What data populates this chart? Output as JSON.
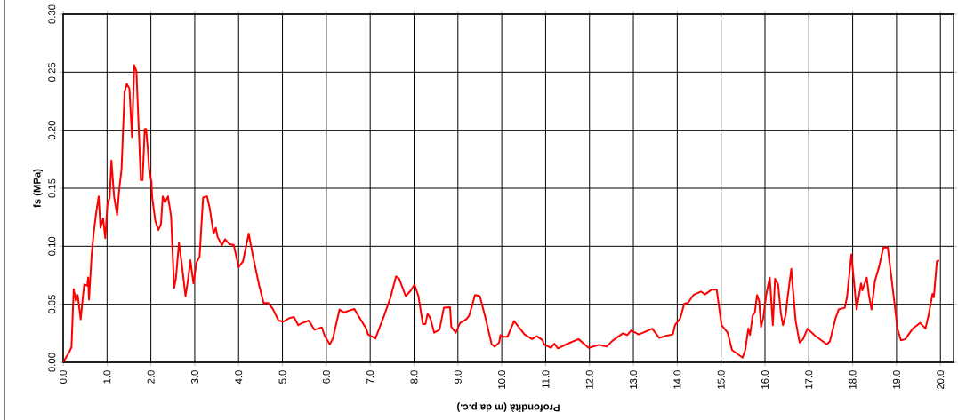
{
  "chart_data": {
    "type": "line",
    "xlabel": "Profondità (m da p.c.)",
    "ylabel": "fs (MPa)",
    "x": [
      0,
      0.14,
      0.19,
      0.24,
      0.29,
      0.33,
      0.4,
      0.44,
      0.48,
      0.55,
      0.57,
      0.59,
      0.65,
      0.7,
      0.76,
      0.81,
      0.85,
      0.91,
      0.96,
      1.01,
      1.06,
      1.1,
      1.16,
      1.23,
      1.28,
      1.33,
      1.4,
      1.45,
      1.51,
      1.57,
      1.62,
      1.67,
      1.77,
      1.81,
      1.86,
      1.89,
      1.93,
      1.96,
      2.01,
      2.03,
      2.1,
      2.17,
      2.23,
      2.27,
      2.32,
      2.39,
      2.46,
      2.53,
      2.57,
      2.64,
      2.7,
      2.79,
      2.85,
      2.9,
      2.97,
      3.04,
      3.11,
      3.19,
      3.28,
      3.34,
      3.43,
      3.48,
      3.52,
      3.62,
      3.69,
      3.79,
      3.89,
      4.0,
      4.1,
      4.23,
      4.33,
      4.47,
      4.57,
      4.68,
      4.78,
      4.91,
      5.02,
      5.15,
      5.26,
      5.36,
      5.46,
      5.6,
      5.73,
      5.9,
      5.96,
      6.08,
      6.15,
      6.3,
      6.4,
      6.64,
      6.78,
      6.91,
      6.95,
      7.12,
      7.32,
      7.46,
      7.59,
      7.66,
      7.81,
      7.93,
      8.01,
      8.1,
      8.2,
      8.26,
      8.31,
      8.37,
      8.46,
      8.58,
      8.68,
      8.82,
      8.85,
      8.95,
      9.05,
      9.19,
      9.26,
      9.39,
      9.5,
      9.63,
      9.77,
      9.84,
      9.94,
      9.97,
      10.04,
      10.13,
      10.28,
      10.52,
      10.69,
      10.8,
      10.93,
      10.96,
      11.12,
      11.2,
      11.28,
      11.47,
      11.75,
      11.98,
      12.22,
      12.39,
      12.52,
      12.76,
      12.86,
      12.95,
      13.12,
      13.22,
      13.43,
      13.59,
      13.76,
      13.9,
      13.95,
      14.07,
      14.16,
      14.24,
      14.37,
      14.54,
      14.63,
      14.78,
      14.9,
      15.01,
      15.15,
      15.25,
      15.49,
      15.55,
      15.62,
      15.66,
      15.72,
      15.77,
      15.82,
      15.87,
      15.91,
      15.96,
      16.03,
      16.11,
      16.18,
      16.23,
      16.3,
      16.36,
      16.41,
      16.47,
      16.52,
      16.6,
      16.7,
      16.79,
      16.87,
      16.97,
      17.14,
      17.41,
      17.48,
      17.61,
      17.68,
      17.82,
      17.87,
      17.97,
      18.09,
      18.19,
      18.22,
      18.32,
      18.37,
      18.43,
      18.51,
      18.6,
      18.7,
      18.8,
      18.88,
      18.95,
      19.02,
      19.1,
      19.2,
      19.37,
      19.47,
      19.54,
      19.66,
      19.73,
      19.82,
      19.85,
      19.92,
      19.97
    ],
    "series": [
      {
        "color": "#ff0000",
        "line_style": "solid",
        "values": [
          0,
          0.009,
          0.013,
          0.063,
          0.053,
          0.058,
          0.037,
          0.053,
          0.067,
          0.066,
          0.073,
          0.054,
          0.093,
          0.113,
          0.131,
          0.143,
          0.116,
          0.124,
          0.107,
          0.136,
          0.142,
          0.174,
          0.143,
          0.127,
          0.15,
          0.166,
          0.233,
          0.24,
          0.236,
          0.194,
          0.256,
          0.251,
          0.157,
          0.157,
          0.201,
          0.201,
          0.184,
          0.166,
          0.156,
          0.142,
          0.122,
          0.114,
          0.119,
          0.143,
          0.138,
          0.143,
          0.126,
          0.064,
          0.072,
          0.103,
          0.086,
          0.057,
          0.072,
          0.088,
          0.068,
          0.086,
          0.091,
          0.142,
          0.143,
          0.133,
          0.111,
          0.116,
          0.108,
          0.101,
          0.106,
          0.102,
          0.101,
          0.082,
          0.087,
          0.111,
          0.091,
          0.066,
          0.051,
          0.051,
          0.046,
          0.036,
          0.035,
          0.038,
          0.039,
          0.032,
          0.034,
          0.036,
          0.028,
          0.03,
          0.023,
          0.0155,
          0.0205,
          0.0455,
          0.043,
          0.046,
          0.037,
          0.029,
          0.024,
          0.0205,
          0.0405,
          0.0555,
          0.074,
          0.072,
          0.057,
          0.062,
          0.067,
          0.057,
          0.033,
          0.033,
          0.042,
          0.038,
          0.0255,
          0.028,
          0.047,
          0.0475,
          0.0305,
          0.0255,
          0.034,
          0.037,
          0.0405,
          0.058,
          0.057,
          0.038,
          0.0155,
          0.0135,
          0.017,
          0.0235,
          0.022,
          0.022,
          0.0355,
          0.024,
          0.02,
          0.0225,
          0.019,
          0.0155,
          0.0125,
          0.016,
          0.012,
          0.0155,
          0.02,
          0.0125,
          0.015,
          0.0135,
          0.0185,
          0.025,
          0.0235,
          0.0275,
          0.024,
          0.0255,
          0.029,
          0.021,
          0.023,
          0.024,
          0.032,
          0.038,
          0.0505,
          0.051,
          0.058,
          0.061,
          0.0585,
          0.0625,
          0.0625,
          0.032,
          0.0255,
          0.0105,
          0.004,
          0.0105,
          0.029,
          0.0235,
          0.0405,
          0.043,
          0.058,
          0.0525,
          0.0305,
          0.038,
          0.0585,
          0.073,
          0.032,
          0.072,
          0.067,
          0.043,
          0.032,
          0.0405,
          0.057,
          0.0805,
          0.0355,
          0.017,
          0.02,
          0.029,
          0.023,
          0.0155,
          0.018,
          0.038,
          0.0455,
          0.047,
          0.056,
          0.093,
          0.0455,
          0.068,
          0.062,
          0.073,
          0.058,
          0.0455,
          0.0705,
          0.082,
          0.099,
          0.099,
          0.074,
          0.052,
          0.029,
          0.019,
          0.02,
          0.029,
          0.032,
          0.034,
          0.029,
          0.0405,
          0.059,
          0.056,
          0.087,
          0.088
        ]
      }
    ],
    "xlim": [
      0,
      20.3
    ],
    "ylim": [
      0,
      0.3
    ],
    "grid": true,
    "xticks": [
      {
        "value": 0,
        "label": "0.0"
      },
      {
        "value": 1,
        "label": "1.0"
      },
      {
        "value": 2,
        "label": "2.0"
      },
      {
        "value": 3,
        "label": "3.0"
      },
      {
        "value": 4,
        "label": "4.0"
      },
      {
        "value": 5,
        "label": "5.0"
      },
      {
        "value": 6,
        "label": "6.0"
      },
      {
        "value": 7,
        "label": "7.0"
      },
      {
        "value": 8,
        "label": "8.0"
      },
      {
        "value": 9,
        "label": "9.0"
      },
      {
        "value": 10,
        "label": "10.0"
      },
      {
        "value": 11,
        "label": "11.0"
      },
      {
        "value": 12,
        "label": "12.0"
      },
      {
        "value": 13,
        "label": "13.0"
      },
      {
        "value": 14,
        "label": "14.0"
      },
      {
        "value": 15,
        "label": "15.0"
      },
      {
        "value": 16,
        "label": "16.0"
      },
      {
        "value": 17,
        "label": "17.0"
      },
      {
        "value": 18,
        "label": "18.0"
      },
      {
        "value": 19,
        "label": "19.0"
      },
      {
        "value": 20,
        "label": "20.0"
      }
    ],
    "yticks": [
      {
        "value": 0,
        "label": "0.00"
      },
      {
        "value": 0.05,
        "label": "0.05"
      },
      {
        "value": 0.1,
        "label": "0.10"
      },
      {
        "value": 0.15,
        "label": "0.15"
      },
      {
        "value": 0.2,
        "label": "0.20"
      },
      {
        "value": 0.25,
        "label": "0.25"
      },
      {
        "value": 0.3,
        "label": "0.30"
      }
    ]
  }
}
